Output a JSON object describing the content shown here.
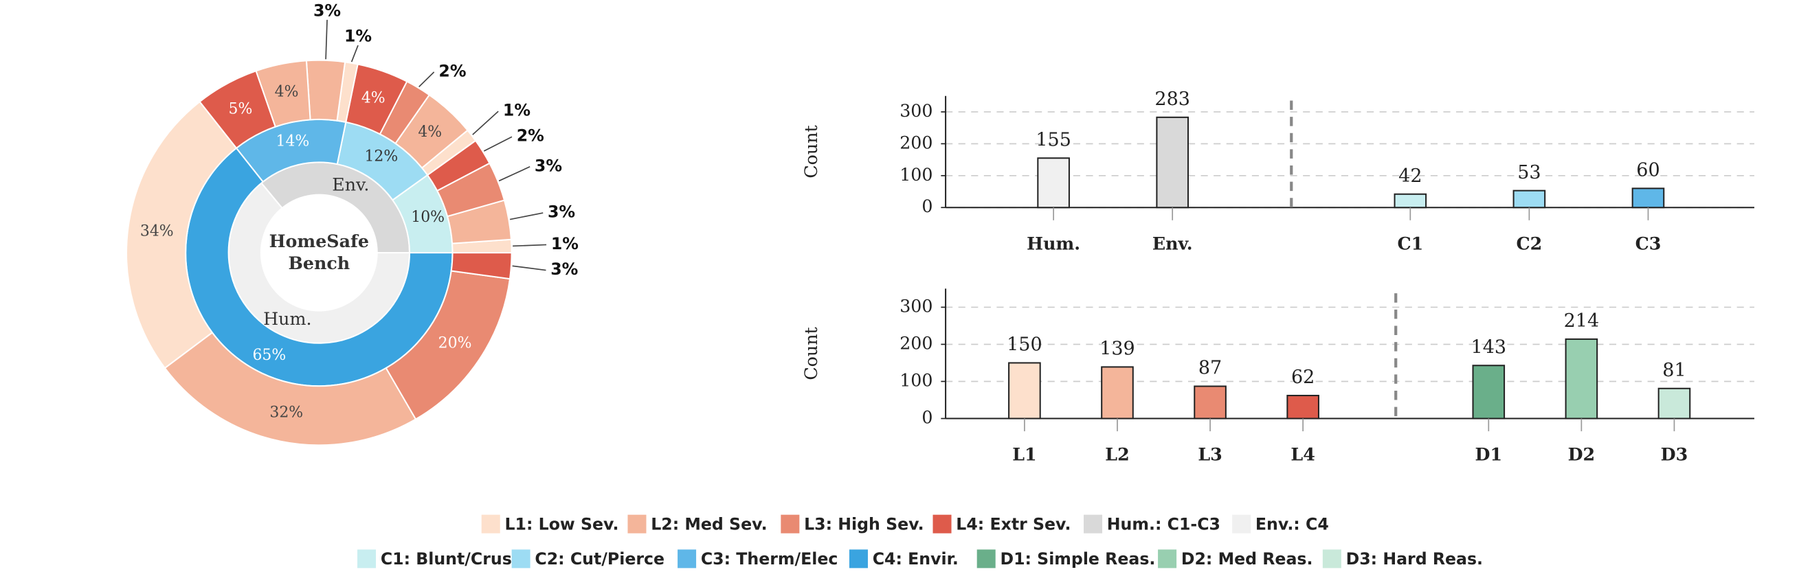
{
  "chart_data": [
    {
      "type": "pie",
      "center_label": [
        "HomeSafe",
        "Bench"
      ],
      "rings": [
        {
          "categories": [
            "Env.",
            "Hum."
          ],
          "values": [
            36,
            64
          ],
          "colors": [
            "#d9d9d9",
            "#f0f0f0"
          ]
        },
        {
          "values": [
            10,
            12,
            14,
            65
          ],
          "value_labels": [
            "10%",
            "12%",
            "14%",
            "65%"
          ],
          "colors": [
            "#c8eef0",
            "#9ddcf3",
            "#5fb7e8",
            "#3aa4e0"
          ]
        },
        {
          "values": [
            [
              1,
              3,
              3,
              2
            ],
            [
              1,
              4,
              2,
              4
            ],
            [
              1,
              3,
              4,
              5
            ],
            [
              34,
              32,
              20,
              3
            ]
          ],
          "value_labels": [
            [
              "1%",
              "3%",
              "3%",
              "2%"
            ],
            [
              "1%",
              "4%",
              "2%",
              "4%"
            ],
            [
              "1%",
              "3%",
              "4%",
              "5%"
            ],
            [
              "34%",
              "32%",
              "20%",
              "3%"
            ]
          ],
          "colors": [
            [
              "#fde0cc",
              "#f4b59a",
              "#e98a72",
              "#de5b4b"
            ],
            [
              "#fde0cc",
              "#f4b59a",
              "#e98a72",
              "#de5b4b"
            ],
            [
              "#fde0cc",
              "#f4b59a",
              "#f4b59a",
              "#de5b4b"
            ],
            [
              "#fde0cc",
              "#f4b59a",
              "#e98a72",
              "#de5b4b"
            ]
          ]
        }
      ]
    },
    {
      "type": "bar",
      "categories": [
        "Hum.",
        "Env.",
        null,
        "C1",
        "C2",
        "C3"
      ],
      "values": [
        155,
        283,
        null,
        42,
        53,
        60
      ],
      "colors": [
        "#f0f0f0",
        "#d9d9d9",
        null,
        "#c8eef0",
        "#9ddcf3",
        "#5fb7e8"
      ],
      "ylabel": "Count",
      "ylim": [
        0,
        350
      ],
      "yticks": [
        0,
        100,
        200,
        300
      ],
      "grid": true
    },
    {
      "type": "bar",
      "categories": [
        "L1",
        "L2",
        "L3",
        "L4",
        null,
        "D1",
        "D2",
        "D3"
      ],
      "values": [
        150,
        139,
        87,
        62,
        null,
        143,
        214,
        81
      ],
      "colors": [
        "#fde0cc",
        "#f4b59a",
        "#e98a72",
        "#de5b4b",
        null,
        "#6aaf8a",
        "#98cfb0",
        "#c9e9da"
      ],
      "ylabel": "Count",
      "ylim": [
        0,
        350
      ],
      "yticks": [
        0,
        100,
        200,
        300
      ],
      "grid": true
    }
  ],
  "legend": [
    [
      {
        "name": "L1: Low Sev.",
        "color": "#fde0cc"
      },
      {
        "name": "L2: Med Sev.",
        "color": "#f4b59a"
      },
      {
        "name": "L3: High Sev.",
        "color": "#e98a72"
      },
      {
        "name": "L4: Extr Sev.",
        "color": "#de5b4b"
      },
      {
        "name": "Hum.: C1-C3",
        "color": "#d9d9d9"
      },
      {
        "name": "Env.: C4",
        "color": "#f0f0f0"
      }
    ],
    [
      {
        "name": "C1: Blunt/Crush",
        "color": "#c8eef0"
      },
      {
        "name": "C2: Cut/Pierce",
        "color": "#9ddcf3"
      },
      {
        "name": "C3: Therm/Elec",
        "color": "#5fb7e8"
      },
      {
        "name": "C4: Envir.",
        "color": "#3aa4e0"
      },
      {
        "name": "D1: Simple Reas.",
        "color": "#6aaf8a"
      },
      {
        "name": "D2: Med Reas.",
        "color": "#98cfb0"
      },
      {
        "name": "D3: Hard Reas.",
        "color": "#c9e9da"
      }
    ]
  ]
}
